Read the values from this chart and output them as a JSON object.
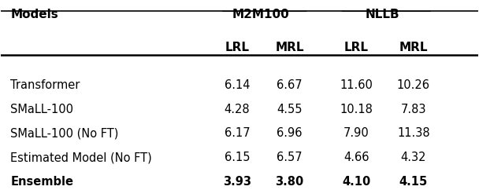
{
  "title": "",
  "col_groups": [
    {
      "label": "M2M100",
      "cols": [
        "LRL",
        "MRL"
      ]
    },
    {
      "label": "NLLB",
      "cols": [
        "LRL",
        "MRL"
      ]
    }
  ],
  "row_header": "Models",
  "rows": [
    {
      "model": "Transformer",
      "m2m_lrl": "6.14",
      "m2m_mrl": "6.67",
      "nllb_lrl": "11.60",
      "nllb_mrl": "10.26",
      "bold": false
    },
    {
      "model": "SMaLL-100",
      "m2m_lrl": "4.28",
      "m2m_mrl": "4.55",
      "nllb_lrl": "10.18",
      "nllb_mrl": "7.83",
      "bold": false
    },
    {
      "model": "SMaLL-100 (No FT)",
      "m2m_lrl": "6.17",
      "m2m_mrl": "6.96",
      "nllb_lrl": "7.90",
      "nllb_mrl": "11.38",
      "bold": false
    },
    {
      "model": "Estimated Model (No FT)",
      "m2m_lrl": "6.15",
      "m2m_mrl": "6.57",
      "nllb_lrl": "4.66",
      "nllb_mrl": "4.32",
      "bold": false
    },
    {
      "model": "Ensemble",
      "m2m_lrl": "3.93",
      "m2m_mrl": "3.80",
      "nllb_lrl": "4.10",
      "nllb_mrl": "4.15",
      "bold": true
    }
  ],
  "bg_color": "#ffffff",
  "text_color": "#000000",
  "font_size": 10.5,
  "header_font_size": 11
}
